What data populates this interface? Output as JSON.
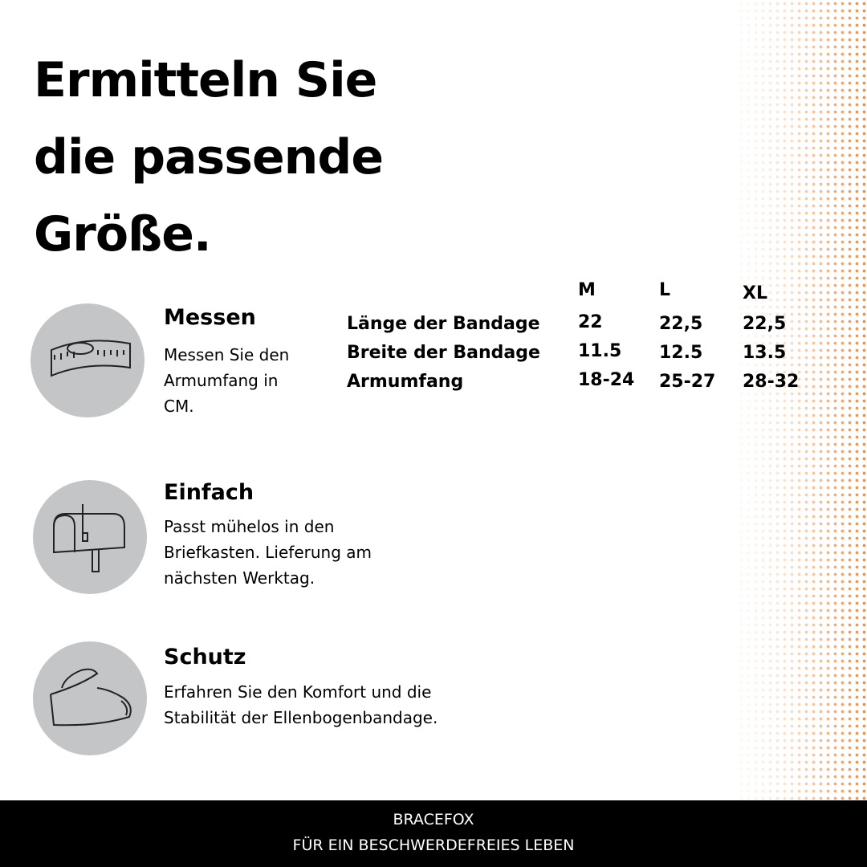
{
  "title": {
    "lines": [
      "Ermitteln Sie",
      "die passende",
      "Größe."
    ]
  },
  "features": [
    {
      "heading": "Messen",
      "text": "Messen Sie den Armumfang in CM."
    },
    {
      "heading": "Einfach",
      "text": "Passt mühelos in den Briefkasten. Lieferung am nächsten Werktag."
    },
    {
      "heading": "Schutz",
      "text": "Erfahren Sie den Komfort und die Stabilität der Ellenbogenbandage."
    }
  ],
  "size_table": {
    "columns": [
      "M",
      "L",
      "XL"
    ],
    "rows": [
      {
        "label": "Länge der Bandage",
        "values": [
          "22",
          "22,5",
          "22,5"
        ]
      },
      {
        "label": "Breite der Bandage",
        "values": [
          "11.5",
          "12.5",
          "13.5"
        ]
      },
      {
        "label": "Armumfang",
        "values": [
          "18-24",
          "25-27",
          "28-32"
        ]
      }
    ]
  },
  "footer": {
    "brand": "BRACEFOX",
    "tagline": "FÜR EIN BESCHWERDEFREIES LEBEN"
  }
}
